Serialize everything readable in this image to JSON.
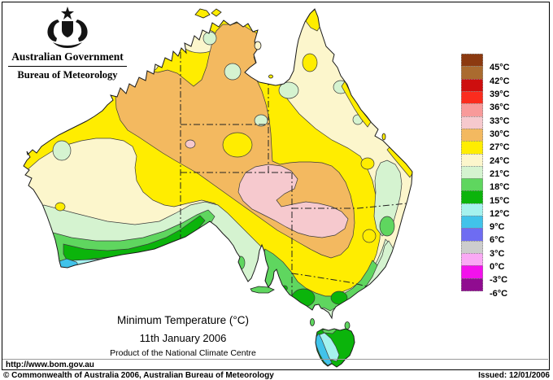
{
  "brand": {
    "government": "Australian Government",
    "bureau": "Bureau of Meteorology"
  },
  "map_caption": {
    "title": "Minimum Temperature (°C)",
    "date": "11th January 2006",
    "product": "Product of the National Climate Centre"
  },
  "footer": {
    "url": "http://www.bom.gov.au",
    "copyright": "© Commonwealth of Australia 2006, Australian Bureau of Meteorology",
    "issued": "Issued: 12/01/2006"
  },
  "legend": {
    "labels": [
      "45°C",
      "42°C",
      "39°C",
      "36°C",
      "33°C",
      "30°C",
      "27°C",
      "24°C",
      "21°C",
      "18°C",
      "15°C",
      "12°C",
      "9°C",
      "6°C",
      "3°C",
      "0°C",
      "-3°C",
      "-6°C"
    ],
    "colors": [
      "#8C3A10",
      "#AA6B2F",
      "#CE0E0E",
      "#FB2C1E",
      "#F89A9A",
      "#F6C9CE",
      "#F3B960",
      "#FFED00",
      "#FCF6CC",
      "#D5F3D0",
      "#5FD65F",
      "#0BB40B",
      "#A5F2EE",
      "#41C3EA",
      "#6E6CF2",
      "#CDCDCD",
      "#FAA9F5",
      "#F312EC",
      "#900C90"
    ]
  }
}
